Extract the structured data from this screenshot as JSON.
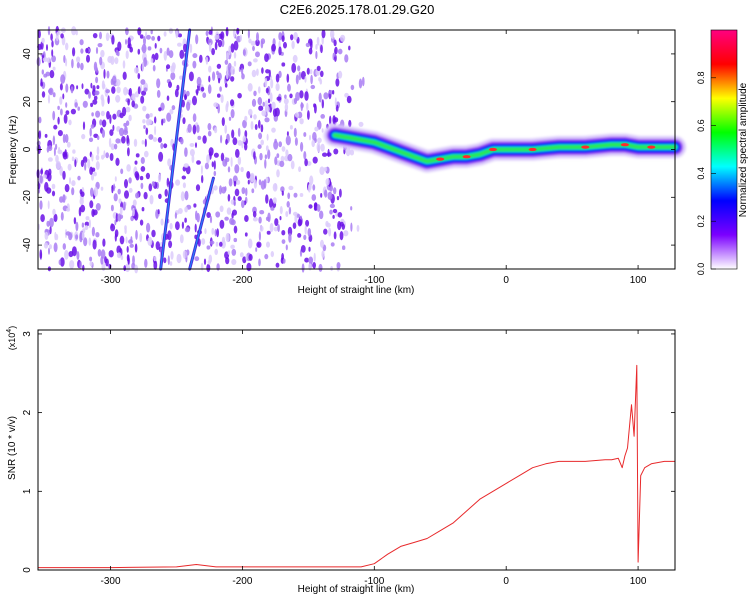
{
  "title": "C2E6.2025.178.01.29.G20",
  "chart_data": [
    {
      "type": "heatmap",
      "xlabel": "Height of straight line (km)",
      "ylabel": "Frequency (Hz)",
      "xlim": [
        -355,
        128
      ],
      "ylim": [
        -50,
        50
      ],
      "xticks": [
        -300,
        -200,
        -100,
        0,
        100
      ],
      "yticks": [
        -40,
        -20,
        0,
        20,
        40
      ],
      "colorbar": {
        "label": "Normalized spectral amplitude",
        "range": [
          0,
          1
        ],
        "ticks": [
          "0.0",
          "0.2",
          "0.4",
          "0.6",
          "0.8"
        ],
        "tick_values": [
          0,
          0.2,
          0.4,
          0.6,
          0.8
        ],
        "colors": [
          "#ffffff",
          "#7b00ff",
          "#0000ff",
          "#00ffff",
          "#00ff00",
          "#ffff00",
          "#ff0000",
          "#ff0080"
        ]
      },
      "noise_region_x": [
        -355,
        -105
      ],
      "track": {
        "x": [
          -130,
          -120,
          -110,
          -100,
          -90,
          -80,
          -70,
          -60,
          -50,
          -40,
          -30,
          -20,
          -10,
          0,
          20,
          40,
          60,
          80,
          90,
          100,
          110,
          128
        ],
        "freq": [
          6,
          5,
          4,
          3,
          1,
          -1,
          -3,
          -5,
          -4,
          -3,
          -3,
          -2,
          0,
          0,
          0,
          1,
          1,
          2,
          2,
          1,
          1,
          1
        ]
      },
      "streaks": [
        {
          "x": [
            -262,
            -240
          ],
          "freq": [
            -50,
            50
          ]
        },
        {
          "x": [
            -240,
            -222
          ],
          "freq": [
            -50,
            -12
          ]
        }
      ]
    },
    {
      "type": "line",
      "xlabel": "Height of straight line (km)",
      "ylabel": "SNR (10 * v/v)",
      "y_multiplier": "(x10",
      "y_multiplier_exp": "4",
      "y_multiplier_close": ")",
      "xlim": [
        -355,
        128
      ],
      "ylim": [
        0,
        3.05
      ],
      "xticks": [
        -300,
        -200,
        -100,
        0,
        100
      ],
      "yticks": [
        0,
        1,
        2,
        3
      ],
      "color": "#e8292b",
      "series": [
        {
          "x": [
            -355,
            -300,
            -250,
            -235,
            -220,
            -200,
            -150,
            -110,
            -100,
            -90,
            -80,
            -70,
            -60,
            -50,
            -40,
            -30,
            -20,
            -10,
            0,
            10,
            20,
            30,
            40,
            60,
            75,
            80,
            85,
            88,
            90,
            92,
            95,
            97,
            99,
            100,
            102,
            105,
            110,
            120,
            128
          ],
          "y": [
            0.03,
            0.03,
            0.04,
            0.07,
            0.04,
            0.04,
            0.04,
            0.04,
            0.08,
            0.2,
            0.3,
            0.35,
            0.4,
            0.5,
            0.6,
            0.75,
            0.9,
            1.0,
            1.1,
            1.2,
            1.3,
            1.35,
            1.38,
            1.38,
            1.4,
            1.4,
            1.42,
            1.3,
            1.45,
            1.55,
            2.1,
            1.7,
            2.6,
            0.1,
            1.2,
            1.3,
            1.35,
            1.38,
            1.38
          ]
        }
      ]
    }
  ]
}
